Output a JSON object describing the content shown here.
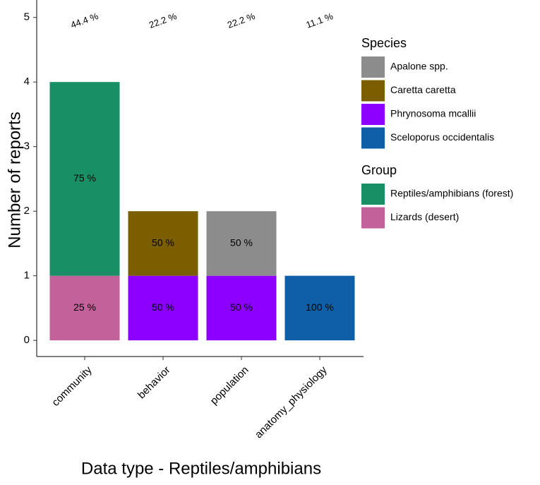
{
  "chart_data": {
    "type": "stacked_bar",
    "x_label": "Data type - Reptiles/amphibians",
    "y_label": "Number of reports",
    "categories": [
      "community",
      "behavior",
      "population",
      "anatomy_physiology"
    ],
    "category_labels": [
      "44.4 %",
      "22.2 %",
      "22.2 %",
      "11.1 %"
    ],
    "ylim": [
      -0.25,
      5.27
    ],
    "yticks": [
      0,
      1,
      2,
      3,
      4,
      5
    ],
    "series_groups": [
      {
        "title": "Species",
        "series": [
          {
            "name": "Apalone spp.",
            "color": "#8c8c8c",
            "values": [
              null,
              null,
              1,
              null
            ],
            "percent_labels": [
              null,
              null,
              "50 %",
              null
            ]
          },
          {
            "name": "Caretta caretta",
            "color": "#7b5e00",
            "values": [
              null,
              1,
              null,
              null
            ],
            "percent_labels": [
              null,
              "50 %",
              null,
              null
            ]
          },
          {
            "name": "Phrynosoma mcallii",
            "color": "#8c00ff",
            "values": [
              null,
              1,
              1,
              null
            ],
            "percent_labels": [
              null,
              "50 %",
              "50 %",
              null
            ]
          },
          {
            "name": "Sceloporus occidentalis",
            "color": "#0f5ea8",
            "values": [
              null,
              null,
              null,
              1
            ],
            "percent_labels": [
              null,
              null,
              null,
              "100 %"
            ]
          }
        ]
      },
      {
        "title": "Group",
        "series": [
          {
            "name": "Reptiles/amphibians (forest)",
            "color": "#188f64",
            "values": [
              3,
              null,
              null,
              null
            ],
            "percent_labels": [
              "75 %",
              null,
              null,
              null
            ]
          },
          {
            "name": "Lizards (desert)",
            "color": "#c3619a",
            "values": [
              1,
              null,
              null,
              null
            ],
            "percent_labels": [
              "25 %",
              null,
              null,
              null
            ]
          }
        ]
      }
    ]
  }
}
